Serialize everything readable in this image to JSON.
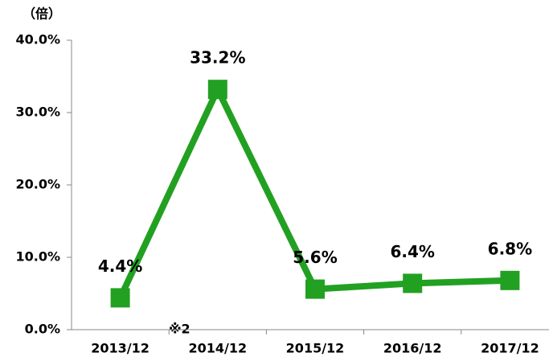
{
  "chart_data": {
    "type": "line",
    "unit_label": "（倍）",
    "annotation": "※2",
    "categories": [
      "2013/12",
      "2014/12",
      "2015/12",
      "2016/12",
      "2017/12"
    ],
    "series": [
      {
        "name": "",
        "color": "#22a022",
        "values": [
          4.4,
          33.2,
          5.6,
          6.4,
          6.8
        ],
        "value_labels": [
          "4.4%",
          "33.2%",
          "5.6%",
          "6.4%",
          "6.8%"
        ]
      }
    ],
    "ylim": [
      0,
      40
    ],
    "yticks": [
      {
        "value": 0,
        "label": "0.0%"
      },
      {
        "value": 10,
        "label": "10.0%"
      },
      {
        "value": 20,
        "label": "20.0%"
      },
      {
        "value": 30,
        "label": "30.0%"
      },
      {
        "value": 40,
        "label": "40.0%"
      }
    ],
    "grid": false
  }
}
